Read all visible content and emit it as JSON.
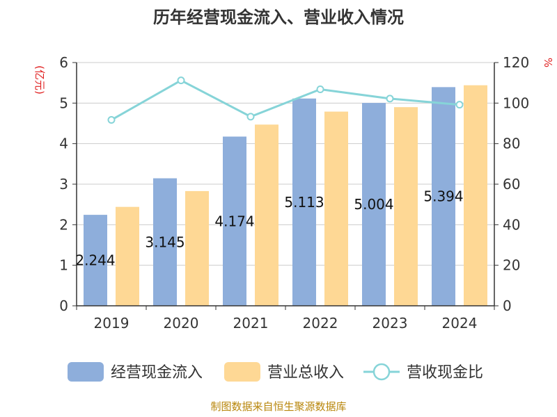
{
  "chart_data": {
    "type": "bar",
    "title": "历年经营现金流入、营业收入情况",
    "categories": [
      "2019",
      "2020",
      "2021",
      "2022",
      "2023",
      "2024"
    ],
    "y_left": {
      "unit": "(亿元)",
      "ylim": [
        0,
        6
      ],
      "ticks": [
        "0",
        "1",
        "2",
        "3",
        "4",
        "5",
        "6"
      ]
    },
    "y_right": {
      "unit": "%",
      "ylim": [
        0,
        120
      ],
      "ticks": [
        "0",
        "20",
        "40",
        "60",
        "80",
        "100",
        "120"
      ]
    },
    "series": [
      {
        "name": "经营现金流入",
        "type": "bar",
        "axis": "left",
        "color": "#8eaedb",
        "values": [
          2.244,
          3.145,
          4.174,
          5.113,
          5.004,
          5.394
        ],
        "labels": [
          "2.244",
          "3.145",
          "4.174",
          "5.113",
          "5.004",
          "5.394"
        ]
      },
      {
        "name": "营业总收入",
        "type": "bar",
        "axis": "left",
        "color": "#fed895",
        "values": [
          2.44,
          2.83,
          4.47,
          4.79,
          4.9,
          5.44
        ]
      },
      {
        "name": "营收现金比",
        "type": "line",
        "axis": "right",
        "color": "#86d4d8",
        "values": [
          91.7,
          111.2,
          93.3,
          106.8,
          102.2,
          99.2
        ]
      }
    ],
    "grid": true,
    "legend_position": "bottom"
  },
  "source_text": "制图数据来自恒生聚源数据库"
}
